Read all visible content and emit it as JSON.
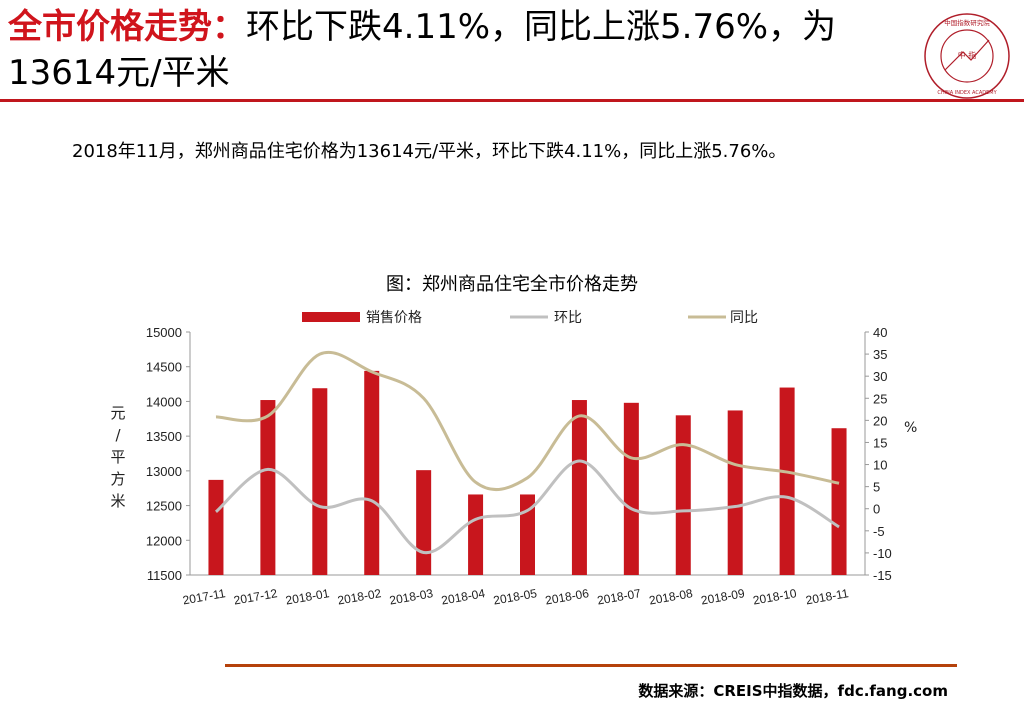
{
  "header": {
    "title_highlight": "全市价格走势：",
    "title_rest": "环比下跌4.11%，同比上涨5.76%，为13614元/平米"
  },
  "summary": "2018年11月，郑州商品住宅价格为13614元/平米，环比下跌4.11%，同比上涨5.76%。",
  "source": "数据来源：CREIS中指数据，fdc.fang.com",
  "logo": {
    "center_text": "中 指",
    "ring_text": "中国指数研究院",
    "english": "CHINA INDEX ACADEMY"
  },
  "colors": {
    "bar": "#c8161d",
    "hb": "#c0c0c0",
    "tb": "#c8bc96",
    "accent": "#d0141c"
  },
  "chart_data": {
    "type": "bar",
    "title": "图：郑州商品住宅全市价格走势",
    "categories": [
      "2017-11",
      "2017-12",
      "2018-01",
      "2018-02",
      "2018-03",
      "2018-04",
      "2018-05",
      "2018-06",
      "2018-07",
      "2018-08",
      "2018-09",
      "2018-10",
      "2018-11"
    ],
    "ylabel": "元/平方米",
    "y2label": "%",
    "ylim": [
      11500,
      15000
    ],
    "y2lim": [
      -15,
      40
    ],
    "yticks": [
      11500,
      12000,
      12500,
      13000,
      13500,
      14000,
      14500,
      15000
    ],
    "y2ticks": [
      -15,
      -10,
      -5,
      0,
      5,
      10,
      15,
      20,
      25,
      30,
      35,
      40
    ],
    "legend_position": "top",
    "series": [
      {
        "name": "销售价格",
        "kind": "bar",
        "axis": "left",
        "values": [
          12870,
          14020,
          14190,
          14440,
          13010,
          12660,
          12660,
          14020,
          13980,
          13800,
          13870,
          14200,
          13614
        ]
      },
      {
        "name": "环比",
        "kind": "line",
        "axis": "right",
        "values": [
          -0.7,
          8.9,
          0.5,
          1.8,
          -9.9,
          -2.4,
          -0.4,
          10.8,
          0.0,
          -0.5,
          0.5,
          2.6,
          -4.11
        ]
      },
      {
        "name": "同比",
        "kind": "line",
        "axis": "right",
        "values": [
          20.8,
          21.0,
          35.0,
          31.0,
          25.0,
          6.0,
          7.0,
          21.0,
          11.5,
          14.5,
          10.0,
          8.3,
          5.76
        ]
      }
    ]
  }
}
